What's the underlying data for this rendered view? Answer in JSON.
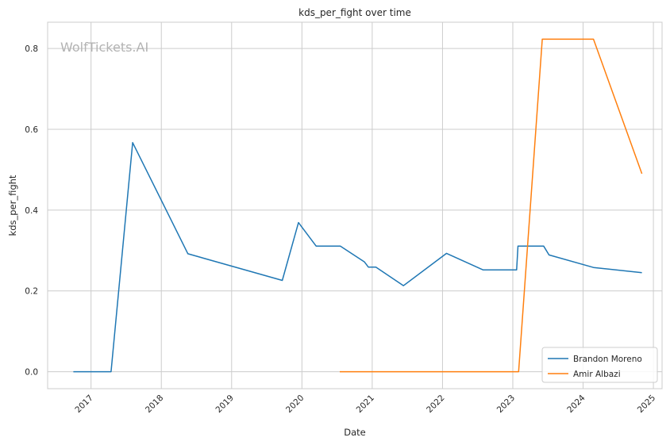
{
  "chart_data": {
    "type": "line",
    "title": "kds_per_fight over time",
    "xlabel": "Date",
    "ylabel": "kds_per_fight",
    "watermark": "WolfTickets.AI",
    "x_ticks": [
      "2017",
      "2018",
      "2019",
      "2020",
      "2021",
      "2022",
      "2023",
      "2024",
      "2025"
    ],
    "y_ticks": [
      "0.0",
      "0.2",
      "0.4",
      "0.6",
      "0.8"
    ],
    "xlim": [
      "2016-05-20",
      "2025-02-15"
    ],
    "ylim": [
      -0.042,
      0.865
    ],
    "grid": true,
    "legend_position": "bottom-right",
    "series": [
      {
        "name": "Brandon Moreno",
        "color": "#1f77b4",
        "points": [
          [
            "2016-10-01",
            0.0
          ],
          [
            "2017-04-15",
            0.0
          ],
          [
            "2017-08-05",
            0.567
          ],
          [
            "2018-05-19",
            0.292
          ],
          [
            "2019-09-21",
            0.226
          ],
          [
            "2019-12-14",
            0.369
          ],
          [
            "2020-03-15",
            0.311
          ],
          [
            "2020-07-19",
            0.311
          ],
          [
            "2020-11-21",
            0.272
          ],
          [
            "2020-12-12",
            0.259
          ],
          [
            "2021-01-20",
            0.259
          ],
          [
            "2021-06-12",
            0.213
          ],
          [
            "2022-01-22",
            0.293
          ],
          [
            "2022-07-30",
            0.252
          ],
          [
            "2023-01-21",
            0.252
          ],
          [
            "2023-01-28",
            0.311
          ],
          [
            "2023-06-10",
            0.311
          ],
          [
            "2023-07-08",
            0.289
          ],
          [
            "2024-02-24",
            0.258
          ],
          [
            "2024-11-02",
            0.245
          ]
        ]
      },
      {
        "name": "Amir Albazi",
        "color": "#ff7f0e",
        "points": [
          [
            "2020-07-16",
            0.0
          ],
          [
            "2023-01-31",
            0.0
          ],
          [
            "2023-06-03",
            0.823
          ],
          [
            "2024-02-24",
            0.823
          ],
          [
            "2024-11-02",
            0.49
          ]
        ]
      }
    ]
  }
}
